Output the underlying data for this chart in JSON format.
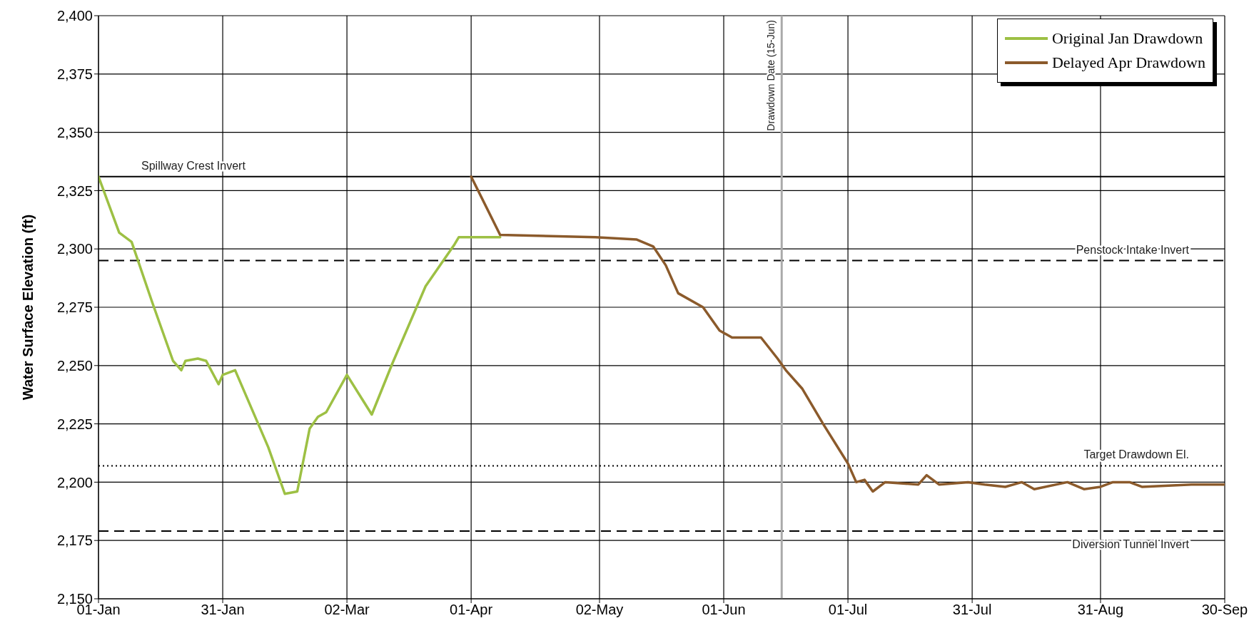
{
  "chart_data": {
    "type": "line",
    "ylabel": "Water Surface Elevation (ft)",
    "xlim": [
      "--01-01",
      "--09-30"
    ],
    "xticks": [
      {
        "value": "--01-01",
        "label": "01-Jan"
      },
      {
        "value": "--01-31",
        "label": "31-Jan"
      },
      {
        "value": "--03-02",
        "label": "02-Mar"
      },
      {
        "value": "--04-01",
        "label": "01-Apr"
      },
      {
        "value": "--05-02",
        "label": "02-May"
      },
      {
        "value": "--06-01",
        "label": "01-Jun"
      },
      {
        "value": "--07-01",
        "label": "01-Jul"
      },
      {
        "value": "--07-31",
        "label": "31-Jul"
      },
      {
        "value": "--08-31",
        "label": "31-Aug"
      },
      {
        "value": "--09-30",
        "label": "30-Sep"
      }
    ],
    "ylim": [
      2150,
      2400
    ],
    "yticks": [
      {
        "value": 2150,
        "label": "2,150"
      },
      {
        "value": 2175,
        "label": "2,175"
      },
      {
        "value": 2200,
        "label": "2,200"
      },
      {
        "value": 2225,
        "label": "2,225"
      },
      {
        "value": 2250,
        "label": "2,250"
      },
      {
        "value": 2275,
        "label": "2,275"
      },
      {
        "value": 2300,
        "label": "2,300"
      },
      {
        "value": 2325,
        "label": "2,325"
      },
      {
        "value": 2350,
        "label": "2,350"
      },
      {
        "value": 2375,
        "label": "2,375"
      },
      {
        "value": 2400,
        "label": "2,400"
      }
    ],
    "grid": true,
    "legend": "top right",
    "marker": "none",
    "line_style": "solid",
    "series": [
      {
        "name": "Original Jan Drawdown",
        "color": "#9dc044",
        "x": [
          "--01-01",
          "--01-06",
          "--01-09",
          "--01-14",
          "--01-19",
          "--01-21",
          "--01-22",
          "--01-25",
          "--01-27",
          "--01-30",
          "--01-31",
          "--02-03",
          "--02-11",
          "--02-15",
          "--02-18",
          "--02-21",
          "--02-23",
          "--02-25",
          "--03-02",
          "--03-08",
          "--03-13",
          "--03-21",
          "--03-28",
          "--03-29",
          "--04-01",
          "--04-08"
        ],
        "values": [
          2331,
          2307,
          2303,
          2277,
          2252,
          2248,
          2252,
          2253,
          2252,
          2242,
          2246,
          2248,
          2215,
          2195,
          2196,
          2223,
          2228,
          2230,
          2246,
          2229,
          2251,
          2284,
          2302,
          2305,
          2305,
          2305
        ]
      },
      {
        "name": "Delayed Apr Drawdown",
        "color": "#8b5a2b",
        "x": [
          "--04-01",
          "--04-08",
          "--05-01",
          "--05-11",
          "--05-15",
          "--05-18",
          "--05-21",
          "--05-27",
          "--05-31",
          "--06-03",
          "--06-10",
          "--06-14",
          "--06-16",
          "--06-20",
          "--06-25",
          "--07-01",
          "--07-03",
          "--07-05",
          "--07-07",
          "--07-10",
          "--07-18",
          "--07-20",
          "--07-23",
          "--07-30",
          "--08-03",
          "--08-08",
          "--08-12",
          "--08-15",
          "--08-23",
          "--08-27",
          "--08-31",
          "--09-03",
          "--09-07",
          "--09-10",
          "--09-22",
          "--09-30"
        ],
        "values": [
          2331,
          2306,
          2305,
          2304,
          2301,
          2293,
          2281,
          2275,
          2265,
          2262,
          2262,
          2253,
          2248,
          2240,
          2225,
          2208,
          2200,
          2201,
          2196,
          2200,
          2199,
          2203,
          2199,
          2200,
          2199,
          2198,
          2200,
          2197,
          2200,
          2197,
          2198,
          2200,
          2200,
          2198,
          2199,
          2199
        ]
      }
    ],
    "ref_lines": [
      {
        "axis": "y",
        "value": 2331,
        "label": "Spillway Crest Invert",
        "color": "#000000",
        "line_style": "solid"
      },
      {
        "axis": "y",
        "value": 2295,
        "label": "Penstock Intake Invert",
        "color": "#000000",
        "line_style": "dashed"
      },
      {
        "axis": "y",
        "value": 2207,
        "label": "Target Drawdown El.",
        "color": "#000000",
        "line_style": "dotted"
      },
      {
        "axis": "y",
        "value": 2179,
        "label": "Diversion Tunnel Invert",
        "color": "#000000",
        "line_style": "dashed"
      },
      {
        "axis": "x",
        "value": "--06-15",
        "label": "Drawdown Date (15-Jun)",
        "color": "#aaaaaa",
        "line_style": "solid"
      }
    ]
  }
}
